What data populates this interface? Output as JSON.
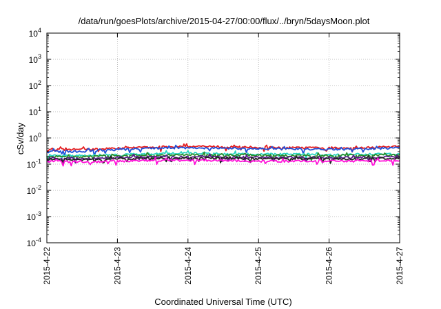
{
  "chart_data": {
    "type": "line",
    "title": "/data/run/goesPlots/archive/2015-04-27/00:00/flux/../bryn/5daysMoon.plot",
    "xlabel": "Coordinated Universal Time (UTC)",
    "ylabel": "cSv/day",
    "x_scale": "time",
    "y_scale": "log",
    "xlim": [
      "2015-04-22",
      "2015-04-27"
    ],
    "ylim": [
      0.0001,
      10000
    ],
    "grid": true,
    "legend": "none",
    "x_ticks": [
      "2015-4-22",
      "2015-4-23",
      "2015-4-24",
      "2015-4-25",
      "2015-4-26",
      "2015-4-27"
    ],
    "y_ticks": [
      {
        "base": "10",
        "exp": "-4"
      },
      {
        "base": "10",
        "exp": "-3"
      },
      {
        "base": "10",
        "exp": "-2"
      },
      {
        "base": "10",
        "exp": "-1"
      },
      {
        "base": "10",
        "exp": "0"
      },
      {
        "base": "10",
        "exp": "1"
      },
      {
        "base": "10",
        "exp": "2"
      },
      {
        "base": "10",
        "exp": "3"
      },
      {
        "base": "10",
        "exp": "4"
      }
    ],
    "x": [
      "2015-04-22",
      "2015-04-22T12:00",
      "2015-04-23",
      "2015-04-23T12:00",
      "2015-04-24",
      "2015-04-24T12:00",
      "2015-04-25",
      "2015-04-25T12:00",
      "2015-04-26",
      "2015-04-26T12:00",
      "2015-04-27"
    ],
    "series": [
      {
        "color": "#e41a1c",
        "values": [
          0.35,
          0.37,
          0.4,
          0.45,
          0.48,
          0.46,
          0.44,
          0.42,
          0.41,
          0.43,
          0.47
        ]
      },
      {
        "color": "#1f4fd8",
        "values": [
          0.31,
          0.3,
          0.36,
          0.4,
          0.42,
          0.41,
          0.39,
          0.38,
          0.37,
          0.38,
          0.42
        ]
      },
      {
        "color": "#2ad4c0",
        "values": [
          0.22,
          0.21,
          0.23,
          0.25,
          0.26,
          0.25,
          0.24,
          0.24,
          0.23,
          0.24,
          0.25
        ]
      },
      {
        "color": "#2a8a2a",
        "values": [
          0.2,
          0.19,
          0.21,
          0.22,
          0.23,
          0.22,
          0.22,
          0.21,
          0.21,
          0.22,
          0.22
        ]
      },
      {
        "color": "#5a1a8a",
        "values": [
          0.17,
          0.16,
          0.18,
          0.19,
          0.19,
          0.19,
          0.18,
          0.18,
          0.18,
          0.18,
          0.19
        ]
      },
      {
        "color": "#222222",
        "values": [
          0.15,
          0.15,
          0.16,
          0.17,
          0.17,
          0.17,
          0.16,
          0.16,
          0.16,
          0.16,
          0.17
        ]
      },
      {
        "color": "#ff10d8",
        "values": [
          0.13,
          0.12,
          0.13,
          0.14,
          0.14,
          0.14,
          0.13,
          0.13,
          0.13,
          0.13,
          0.14
        ]
      }
    ]
  }
}
